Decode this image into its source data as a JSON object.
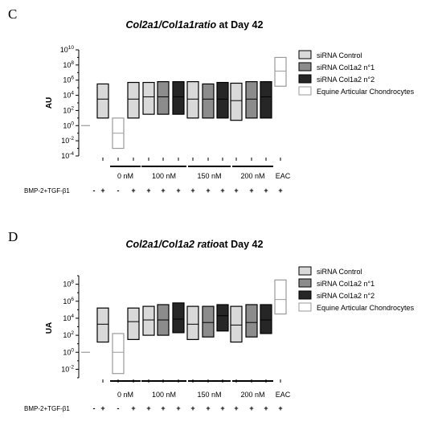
{
  "chart_data": [
    {
      "panel": "C",
      "type": "box",
      "title_italic": "Col2a1/Col1a1ratio",
      "title_rest": " at Day 42",
      "ylabel": "AU",
      "yscale": "log",
      "ylim_exp": [
        -4,
        10
      ],
      "ytick_exps": [
        -4,
        -2,
        0,
        2,
        4,
        6,
        8,
        10
      ],
      "ytick_labels": [
        "10-4",
        "10-2",
        "100",
        "102",
        "104",
        "106",
        "108",
        "1010"
      ],
      "legend": [
        "siRNA Control",
        "siRNA Col1a2 n°1",
        "siRNA Col1a2 n°2",
        "Equine Articular Chondrocytes"
      ],
      "group_labels": [
        "0 nM",
        "100 nM",
        "150 nM",
        "200 nM",
        "EAC"
      ],
      "condition_label": "BMP-2+TGF-β1",
      "condition_signs": [
        "-",
        "+",
        "-",
        "+",
        "+",
        "+",
        "+",
        "+",
        "+",
        "+",
        "+",
        "+",
        "+",
        "+"
      ],
      "reference_line": {
        "series": "siRNA Control",
        "value": "1e0"
      },
      "boxes": [
        {
          "group": "none",
          "series": "siRNA Control",
          "condition": "+",
          "min": "1e1",
          "median": "1e3.5",
          "max": "1e5.5"
        },
        {
          "group": "none",
          "series": "Equine Articular Chondrocytes",
          "condition": "-",
          "min": "1e-3",
          "median": "1e-1",
          "max": "1e1"
        },
        {
          "group": "0 nM",
          "series": "siRNA Control",
          "condition": "+",
          "min": "1e1",
          "median": "1e3.5",
          "max": "1e5.7"
        },
        {
          "group": "100 nM",
          "series": "siRNA Control",
          "condition": "+",
          "min": "1e1.5",
          "median": "1e3.8",
          "max": "1e5.7"
        },
        {
          "group": "100 nM",
          "series": "siRNA Col1a2 n°1",
          "condition": "+",
          "min": "1e1.5",
          "median": "1e3.8",
          "max": "1e5.8"
        },
        {
          "group": "100 nM",
          "series": "siRNA Col1a2 n°2",
          "condition": "+",
          "min": "1e1.5",
          "median": "1e3.8",
          "max": "1e5.8"
        },
        {
          "group": "150 nM",
          "series": "siRNA Control",
          "condition": "+",
          "min": "1e1",
          "median": "1e3.5",
          "max": "1e5.8"
        },
        {
          "group": "150 nM",
          "series": "siRNA Col1a2 n°1",
          "condition": "+",
          "min": "1e1",
          "median": "1e3.5",
          "max": "1e5.5"
        },
        {
          "group": "150 nM",
          "series": "siRNA Col1a2 n°2",
          "condition": "+",
          "min": "1e1",
          "median": "1e3.5",
          "max": "1e5.7"
        },
        {
          "group": "200 nM",
          "series": "siRNA Control",
          "condition": "+",
          "min": "1e0.7",
          "median": "1e3.3",
          "max": "1e5.6"
        },
        {
          "group": "200 nM",
          "series": "siRNA Col1a2 n°1",
          "condition": "+",
          "min": "1e1",
          "median": "1e3.5",
          "max": "1e5.8"
        },
        {
          "group": "200 nM",
          "series": "siRNA Col1a2 n°2",
          "condition": "+",
          "min": "1e1",
          "median": "1e3.8",
          "max": "1e5.8"
        },
        {
          "group": "EAC",
          "series": "Equine Articular Chondrocytes",
          "condition": "+",
          "min": "1e5.2",
          "median": "1e7.2",
          "max": "1e9"
        }
      ]
    },
    {
      "panel": "D",
      "type": "box",
      "title_italic": "Col2a1/Col1a2 ratio",
      "title_rest": "at Day 42",
      "ylabel": "UA",
      "yscale": "log",
      "ylim_exp": [
        -3,
        9
      ],
      "ytick_exps": [
        -2,
        0,
        2,
        4,
        6,
        8
      ],
      "ytick_labels": [
        "10-2",
        "100",
        "102",
        "104",
        "106",
        "108"
      ],
      "legend": [
        "siRNA Control",
        "siRNA Col1a2 n°1",
        "siRNA Col1a2 n°2",
        "Equine Articular Chondrocytes"
      ],
      "group_labels": [
        "0 nM",
        "100 nM",
        "150 nM",
        "200 nM",
        "EAC"
      ],
      "condition_label": "BMP-2+TGF-β1",
      "condition_signs": [
        "-",
        "+",
        "-",
        "+",
        "+",
        "+",
        "+",
        "+",
        "+",
        "+",
        "+",
        "+",
        "+",
        "+"
      ],
      "reference_line": {
        "series": "siRNA Control",
        "value": "1e0"
      },
      "boxes": [
        {
          "group": "none",
          "series": "siRNA Control",
          "condition": "+",
          "min": "1e1.2",
          "median": "1e3.3",
          "max": "1e5.2"
        },
        {
          "group": "none",
          "series": "Equine Articular Chondrocytes",
          "condition": "-",
          "min": "1e-2.5",
          "median": "1e0",
          "max": "1e2.2"
        },
        {
          "group": "0 nM",
          "series": "siRNA Control",
          "condition": "+",
          "min": "1e1.5",
          "median": "1e3.6",
          "max": "1e5.2"
        },
        {
          "group": "100 nM",
          "series": "siRNA Control",
          "condition": "+",
          "min": "1e2",
          "median": "1e3.8",
          "max": "1e5.4"
        },
        {
          "group": "100 nM",
          "series": "siRNA Col1a2 n°1",
          "condition": "+",
          "min": "1e2",
          "median": "1e3.8",
          "max": "1e5.6"
        },
        {
          "group": "100 nM",
          "series": "siRNA Col1a2 n°2",
          "condition": "+",
          "min": "1e2.3",
          "median": "1e3.9",
          "max": "1e5.8"
        },
        {
          "group": "150 nM",
          "series": "siRNA Control",
          "condition": "+",
          "min": "1e1.5",
          "median": "1e3.3",
          "max": "1e5.4"
        },
        {
          "group": "150 nM",
          "series": "siRNA Col1a2 n°1",
          "condition": "+",
          "min": "1e1.8",
          "median": "1e3.5",
          "max": "1e5.4"
        },
        {
          "group": "150 nM",
          "series": "siRNA Col1a2 n°2",
          "condition": "+",
          "min": "1e2.5",
          "median": "1e4.3",
          "max": "1e5.6"
        },
        {
          "group": "200 nM",
          "series": "siRNA Control",
          "condition": "+",
          "min": "1e1.2",
          "median": "1e3.2",
          "max": "1e5.4"
        },
        {
          "group": "200 nM",
          "series": "siRNA Col1a2 n°1",
          "condition": "+",
          "min": "1e1.8",
          "median": "1e3.5",
          "max": "1e5.6"
        },
        {
          "group": "200 nM",
          "series": "siRNA Col1a2 n°2",
          "condition": "+",
          "min": "1e2.2",
          "median": "1e3.8",
          "max": "1e5.6"
        },
        {
          "group": "EAC",
          "series": "Equine Articular Chondrocytes",
          "condition": "+",
          "min": "1e4.5",
          "median": "1e6.2",
          "max": "1e8.5"
        }
      ]
    }
  ],
  "colors": {
    "siRNA Control": "#d9d9d9",
    "siRNA Col1a2 n°1": "#8c8c8c",
    "siRNA Col1a2 n°2": "#262626",
    "Equine Articular Chondrocytes": "#ffffff",
    "eac_stroke": "#9a9a9a",
    "plus_sign": "#1f5e3a"
  }
}
